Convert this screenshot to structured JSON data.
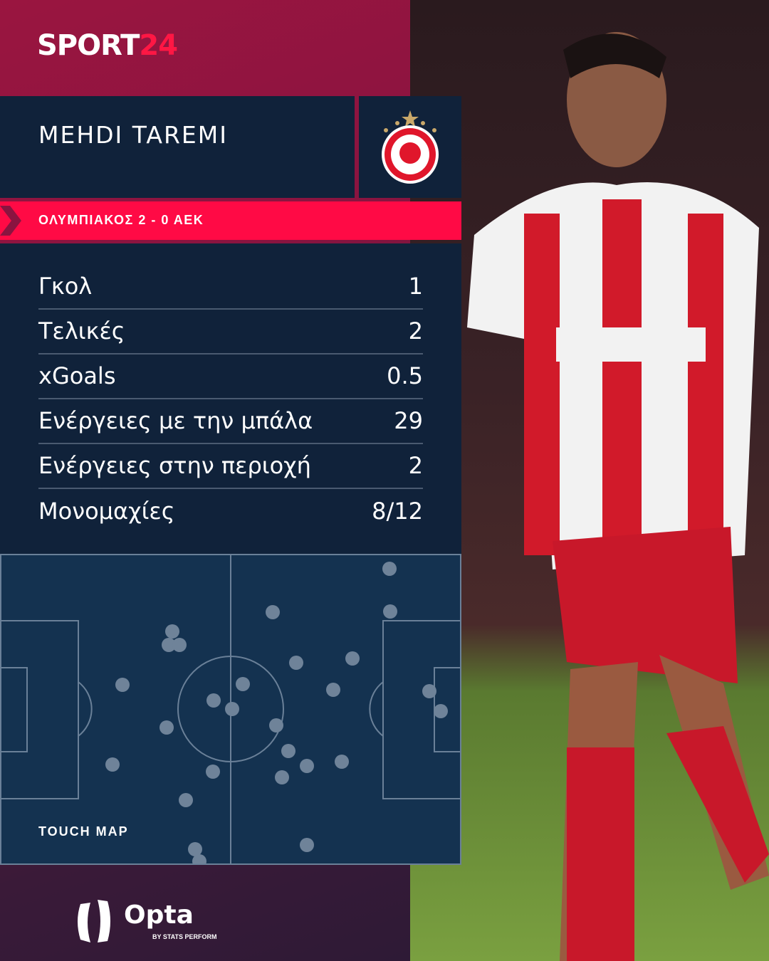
{
  "brand": {
    "logo_main": "SPORT",
    "logo_num": "24"
  },
  "player": {
    "name": "MEHDI TAREMI",
    "club_crest": "olympiacos-crest"
  },
  "match": {
    "score_line": "ΟΛΥΜΠΙΑΚΟΣ 2 - 0 ΑΕΚ"
  },
  "stats": [
    {
      "label": "Γκολ",
      "value": "1"
    },
    {
      "label": "Τελικές",
      "value": "2"
    },
    {
      "label": "xGoals",
      "value": "0.5"
    },
    {
      "label": "Ενέργειες με την μπάλα",
      "value": "29"
    },
    {
      "label": "Ενέργειες στην περιοχή",
      "value": "2"
    },
    {
      "label": "Μονομαχίες",
      "value": "8/12"
    }
  ],
  "touch_map": {
    "title": "TOUCH MAP"
  },
  "footer": {
    "provider": "Opta",
    "provider_sub": "BY STATS PERFORM"
  },
  "colors": {
    "accent": "#ff0a45",
    "panel": "#10223a",
    "pitch": "#143250",
    "dot": "#6f8399"
  }
}
